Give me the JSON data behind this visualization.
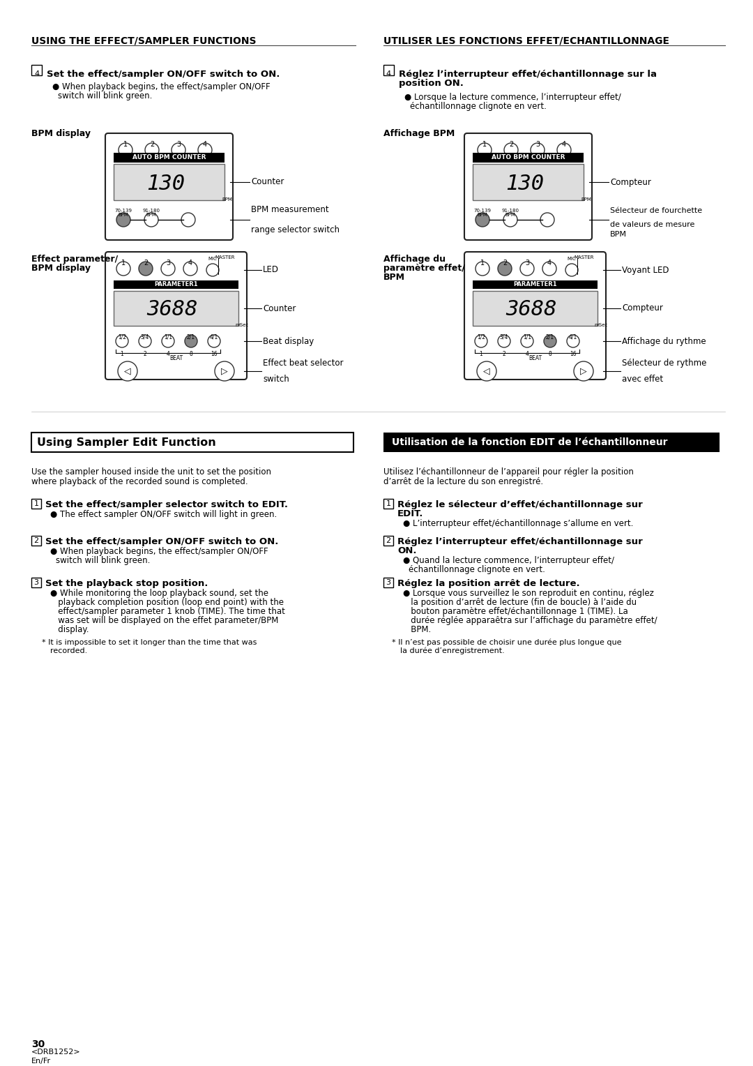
{
  "bg_color": "#ffffff",
  "top_left_heading": "USING THE EFFECT/SAMPLER FUNCTIONS",
  "top_right_heading": "UTILISER LES FONCTIONS EFFET/ECHANTILLONNAGE",
  "step4_left_bold": "Set the effect/sampler ON/OFF switch to ON.",
  "step4_left_b1": "When playback begins, the effect/sampler ON/OFF",
  "step4_left_b2": "switch will blink green.",
  "step4_right_bold1": "Réglez l’interrupteur effet/échantillonnage sur la",
  "step4_right_bold2": "position ON.",
  "step4_right_b1": "Lorsque la lecture commence, l’interrupteur effet/",
  "step4_right_b2": "échantillonnage clignote en vert.",
  "bpm_label_left": "BPM display",
  "bpm_label_right": "Affichage BPM",
  "ep_label_left1": "Effect parameter/",
  "ep_label_left2": "BPM display",
  "ep_label_right1": "Affichage du",
  "ep_label_right2": "paramètre effet/",
  "ep_label_right3": "BPM",
  "counter_en": "Counter",
  "counter_fr": "Compteur",
  "bpm_range_en1": "BPM measurement",
  "bpm_range_en2": "range selector switch",
  "bpm_range_fr1": "Sélecteur de fourchette",
  "bpm_range_fr2": "de valeurs de mesure",
  "bpm_range_fr3": "BPM",
  "led_en": "LED",
  "led_fr": "Voyant LED",
  "beat_en": "Beat display",
  "beat_fr": "Affichage du rythme",
  "ebs_en1": "Effect beat selector",
  "ebs_en2": "switch",
  "ebs_fr1": "Sélecteur de rythme",
  "ebs_fr2": "avec effet",
  "sec2_head_left": "Using Sampler Edit Function",
  "sec2_head_right": "Utilisation de la fonction EDIT de l’échantillonneur",
  "intro_left1": "Use the sampler housed inside the unit to set the position",
  "intro_left2": "where playback of the recorded sound is completed.",
  "intro_right1": "Utilisez l’échantillonneur de l’appareil pour régler la position",
  "intro_right2": "d’arrêt de la lecture du son enregistré.",
  "s1_bold_en": "Set the effect/sampler selector switch to EDIT.",
  "s1_bul_en": "The effect sampler ON/OFF switch will light in green.",
  "s1_bold_fr1": "Réglez le sélecteur d’effet/échantillonnage sur",
  "s1_bold_fr2": "EDIT.",
  "s1_bul_fr": "L’interrupteur effet/échantillonnage s’allume en vert.",
  "s2_bold_en": "Set the effect/sampler ON/OFF switch to ON.",
  "s2_bul_en1": "When playback begins, the effect/sampler ON/OFF",
  "s2_bul_en2": "switch will blink green.",
  "s2_bold_fr1": "Réglez l’interrupteur effet/échantillonnage sur",
  "s2_bold_fr2": "ON.",
  "s2_bul_fr1": "Quand la lecture commence, l’interrupteur effet/",
  "s2_bul_fr2": "échantillonnage clignote en vert.",
  "s3_bold_en": "Set the playback stop position.",
  "s3_bul_en1": "While monitoring the loop playback sound, set the",
  "s3_bul_en2": "playback completion position (loop end point) with the",
  "s3_bul_en3": "effect/sampler parameter 1 knob (TIME). The time that",
  "s3_bul_en4": "was set will be displayed on the effet parameter/BPM",
  "s3_bul_en5": "display.",
  "s3_note_en1": "* It is impossible to set it longer than the time that was",
  "s3_note_en2": "  recorded.",
  "s3_bold_fr": "Réglez la position arrêt de lecture.",
  "s3_bul_fr1": "Lorsque vous surveillez le son reproduit en continu, réglez",
  "s3_bul_fr2": "la position d’arrêt de lecture (fin de boucle) à l’aide du",
  "s3_bul_fr3": "bouton paramètre effet/échantillonnage 1 (TIME). La",
  "s3_bul_fr4": "durée réglée apparaêtra sur l’affichage du paramètre effet/",
  "s3_bul_fr5": "BPM.",
  "s3_note_fr1": "* Il n’est pas possible de choisir une durée plus longue que",
  "s3_note_fr2": "  la durée d’enregistrement.",
  "page_num": "30",
  "model": "<DRB1252>",
  "lang": "En/Fr"
}
